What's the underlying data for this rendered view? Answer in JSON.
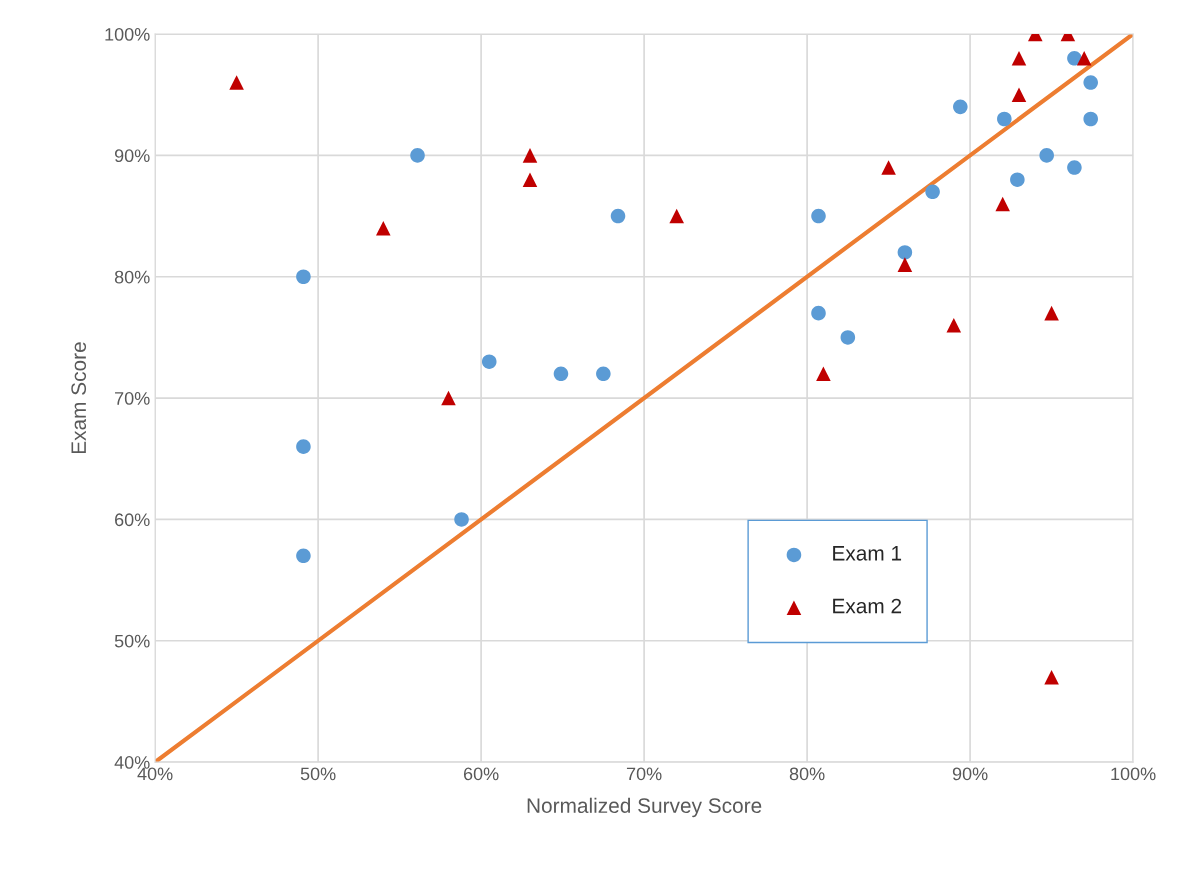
{
  "chart_data": {
    "type": "scatter",
    "xlabel": "Normalized Survey Score",
    "ylabel": "Exam Score",
    "xlim": [
      40,
      100
    ],
    "ylim": [
      40,
      100
    ],
    "xticks": [
      {
        "value": 40,
        "label": "40%"
      },
      {
        "value": 50,
        "label": "50%"
      },
      {
        "value": 60,
        "label": "60%"
      },
      {
        "value": 70,
        "label": "70%"
      },
      {
        "value": 80,
        "label": "80%"
      },
      {
        "value": 90,
        "label": "90%"
      },
      {
        "value": 100,
        "label": "100%"
      }
    ],
    "yticks": [
      {
        "value": 40,
        "label": "40%"
      },
      {
        "value": 50,
        "label": "50%"
      },
      {
        "value": 60,
        "label": "60%"
      },
      {
        "value": 70,
        "label": "70%"
      },
      {
        "value": 80,
        "label": "80%"
      },
      {
        "value": 90,
        "label": "90%"
      },
      {
        "value": 100,
        "label": "100%"
      }
    ],
    "grid": true,
    "legend": "bottom right",
    "series": [
      {
        "name": "Exam 1",
        "color": "#5b9bd5",
        "marker": "circle",
        "x": [
          49.1,
          49.1,
          49.1,
          56.1,
          58.8,
          60.5,
          64.9,
          67.5,
          68.4,
          80.7,
          80.7,
          82.5,
          86.0,
          87.7,
          89.4,
          92.1,
          92.9,
          94.7,
          96.4,
          96.4,
          97.4,
          97.4
        ],
        "values": [
          80,
          66,
          57,
          90,
          60,
          73,
          72,
          72,
          85,
          85,
          77,
          75,
          82,
          87,
          94,
          93,
          88,
          90,
          89,
          98,
          96,
          93
        ]
      },
      {
        "name": "Exam 2",
        "color": "#c00000",
        "marker": "triangle",
        "x": [
          45,
          54,
          58,
          63,
          63,
          72,
          81,
          85,
          86,
          89,
          92,
          93,
          93,
          94,
          95,
          95,
          96,
          97
        ],
        "values": [
          96,
          84,
          70,
          90,
          88,
          85,
          72,
          89,
          81,
          76,
          86,
          98,
          95,
          100,
          77,
          47,
          100,
          98
        ]
      },
      {
        "type": "line",
        "color": "#ed7d31",
        "marker": "none",
        "x": [
          40,
          100
        ],
        "values": [
          40,
          100
        ]
      }
    ]
  }
}
